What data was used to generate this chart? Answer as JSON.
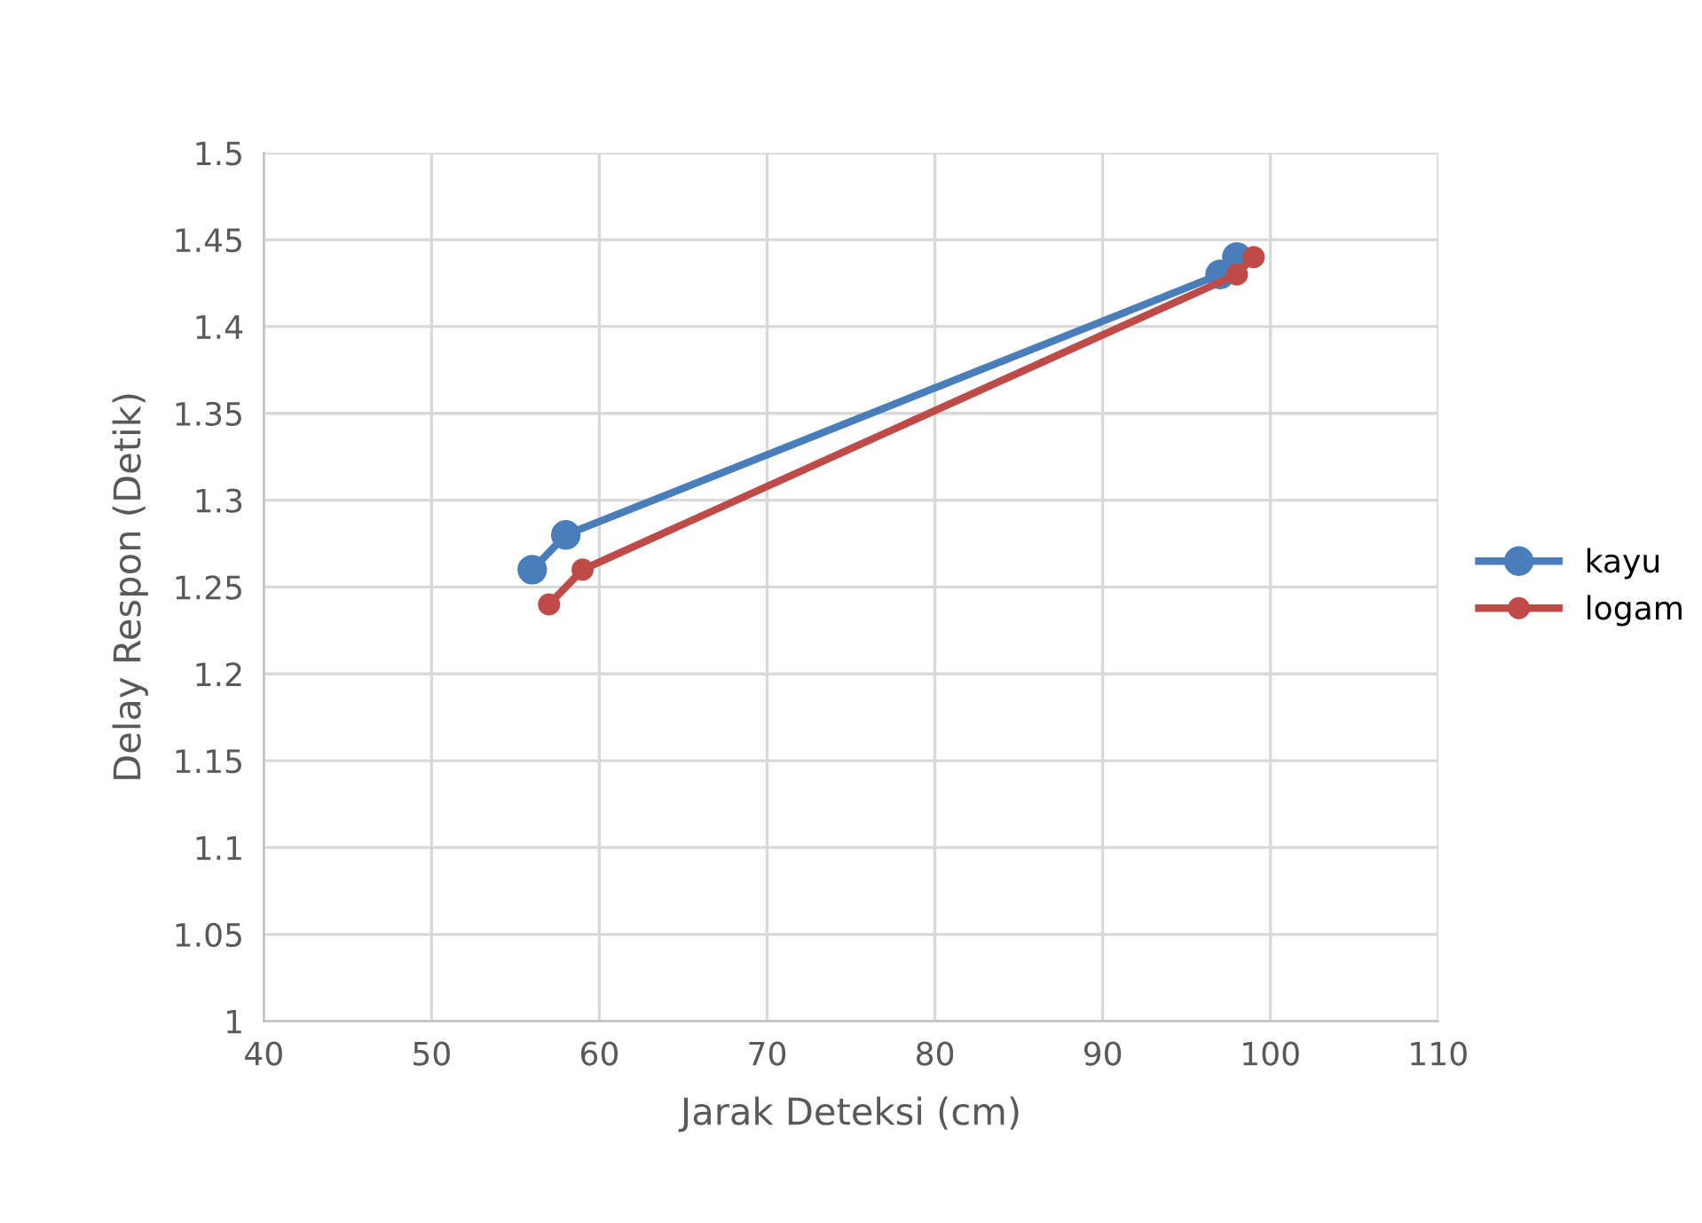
{
  "chart_data": {
    "type": "line",
    "xlabel": "Jarak Deteksi (cm)",
    "ylabel": "Delay Respon (Detik)",
    "xlim": [
      40,
      110
    ],
    "xticks": [
      40,
      50,
      60,
      70,
      80,
      90,
      100,
      110
    ],
    "ylim": [
      1,
      1.5
    ],
    "yticks": [
      {
        "value": 1,
        "label": "1"
      },
      {
        "value": 1.05,
        "label": "1.05"
      },
      {
        "value": 1.1,
        "label": "1.1"
      },
      {
        "value": 1.15,
        "label": "1.15"
      },
      {
        "value": 1.2,
        "label": "1.2"
      },
      {
        "value": 1.25,
        "label": "1.25"
      },
      {
        "value": 1.3,
        "label": "1.3"
      },
      {
        "value": 1.35,
        "label": "1.35"
      },
      {
        "value": 1.4,
        "label": "1.4"
      },
      {
        "value": 1.45,
        "label": "1.45"
      },
      {
        "value": 1.5,
        "label": "1.5"
      }
    ],
    "grid": true,
    "legend": "right",
    "marker": "circle",
    "line_style": "solid",
    "series": [
      {
        "name": "kayu",
        "color": "#4a7ebb",
        "x": [
          56,
          58,
          97,
          98
        ],
        "values": [
          1.26,
          1.28,
          1.43,
          1.44
        ]
      },
      {
        "name": "logam",
        "color": "#be4b48",
        "x": [
          57,
          59,
          98,
          99
        ],
        "values": [
          1.24,
          1.26,
          1.43,
          1.44
        ]
      }
    ]
  }
}
